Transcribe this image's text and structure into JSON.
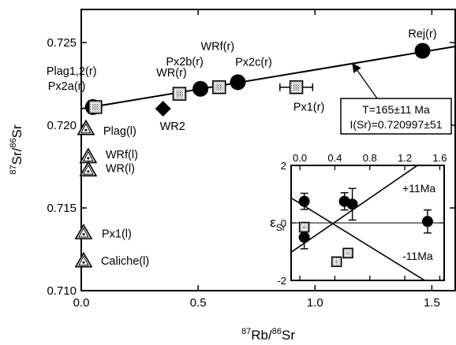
{
  "chart_data": [
    {
      "type": "scatter",
      "title": "",
      "xlabel_parts": {
        "sup1": "87",
        "base1": "Rb/",
        "sup2": "86",
        "base2": "Sr"
      },
      "ylabel_parts": {
        "sup1": "87",
        "base1": "Sr/",
        "sup2": "86",
        "base2": "Sr"
      },
      "xlim": [
        0,
        1.6
      ],
      "ylim": [
        0.71,
        0.727
      ],
      "x_ticks": [
        0.0,
        0.5,
        1.0,
        1.5
      ],
      "x_tick_labels": [
        "0.0",
        "0.5",
        "1.0",
        "1.5"
      ],
      "y_ticks": [
        0.71,
        0.715,
        0.72,
        0.725
      ],
      "y_tick_labels": [
        "0.710",
        "0.715",
        "0.720",
        "0.725"
      ],
      "isochron": {
        "x": [
          0.0,
          1.6
        ],
        "y": [
          0.720997,
          0.724763
        ]
      },
      "annotation": {
        "line1_prefix": "T=165",
        "line1_pm": "±",
        "line1_suffix": "11 Ma",
        "line2_prefix": "I(Sr)=0.720997",
        "line2_pm": "±",
        "line2_suffix": "51"
      },
      "points": [
        {
          "id": "rej",
          "label": "Rej(r)",
          "x": 1.46,
          "y": 0.7245,
          "marker": "circle"
        },
        {
          "id": "px2c",
          "label": "Px2c(r)",
          "x": 0.67,
          "y": 0.7226,
          "marker": "circle"
        },
        {
          "id": "px2b",
          "label": "Px2b(r)",
          "x": 0.51,
          "y": 0.7222,
          "marker": "circle"
        },
        {
          "id": "wrf-r",
          "label": "WRf(r)",
          "x": 0.59,
          "y": 0.7223,
          "marker": "square-hatched"
        },
        {
          "id": "wr-r",
          "label": "WR(r)",
          "x": 0.42,
          "y": 0.7219,
          "marker": "square-hatched"
        },
        {
          "id": "px1-r",
          "label": "Px1(r)",
          "x": 0.92,
          "y": 0.7223,
          "marker": "square-hatched",
          "xerr": 0.07
        },
        {
          "id": "wr2",
          "label": "WR2",
          "x": 0.35,
          "y": 0.721,
          "marker": "diamond"
        },
        {
          "id": "plag-r",
          "label": "Plag1,2(r)",
          "x": 0.05,
          "y": 0.7211,
          "marker": "circle"
        },
        {
          "id": "px2a-r",
          "label": "Px2a(r)",
          "x": 0.06,
          "y": 0.7211,
          "marker": "square-hatched"
        },
        {
          "id": "plag-l",
          "label": "Plag(l)",
          "x": 0.02,
          "y": 0.7198,
          "marker": "triangle"
        },
        {
          "id": "wrf-l",
          "label": "WRf(l)",
          "x": 0.03,
          "y": 0.7181,
          "marker": "triangle"
        },
        {
          "id": "wr-l",
          "label": "WR(l)",
          "x": 0.03,
          "y": 0.7173,
          "marker": "triangle"
        },
        {
          "id": "px1-l",
          "label": "Px1(l)",
          "x": 0.01,
          "y": 0.7135,
          "marker": "triangle"
        },
        {
          "id": "caliche-l",
          "label": "Caliche(l)",
          "x": 0.01,
          "y": 0.7118,
          "marker": "triangle"
        }
      ]
    },
    {
      "type": "scatter",
      "title": "",
      "ylabel_parts": {
        "base": "ε",
        "sub": "Sr"
      },
      "xlim": [
        -0.1,
        1.65
      ],
      "ylim": [
        -2,
        2
      ],
      "x_ticks": [
        0.0,
        0.4,
        0.8,
        1.2,
        1.6
      ],
      "x_tick_labels": [
        "0.0",
        "0.4",
        "0.8",
        "1.2",
        "1.6"
      ],
      "y_ticks": [
        -2,
        0,
        2
      ],
      "y_tick_labels": [
        "-2",
        "0",
        "2"
      ],
      "reference_lines": [
        {
          "label": "+11Ma",
          "x": [
            -0.1,
            1.65
          ],
          "y": [
            -1.02,
            2.64
          ]
        },
        {
          "label": "-11Ma",
          "x": [
            -0.1,
            1.65
          ],
          "y": [
            0.87,
            -2.42
          ]
        }
      ],
      "points": [
        {
          "x": 0.05,
          "y": 0.75,
          "err": 0.28,
          "marker": "circle"
        },
        {
          "x": 0.05,
          "y": -0.5,
          "err": 0.4,
          "marker": "circle"
        },
        {
          "x": 0.05,
          "y": -0.15,
          "err": 0.0,
          "marker": "square-hatched"
        },
        {
          "x": 0.51,
          "y": 0.75,
          "err": 0.3,
          "marker": "circle"
        },
        {
          "x": 0.6,
          "y": 0.65,
          "err": 0.55,
          "marker": "circle"
        },
        {
          "x": 1.46,
          "y": 0.05,
          "err": 0.4,
          "marker": "circle"
        },
        {
          "x": 0.42,
          "y": -1.35,
          "err": 0.0,
          "marker": "square-hatched"
        },
        {
          "x": 0.55,
          "y": -1.05,
          "err": 0.0,
          "marker": "square-hatched"
        }
      ]
    }
  ]
}
